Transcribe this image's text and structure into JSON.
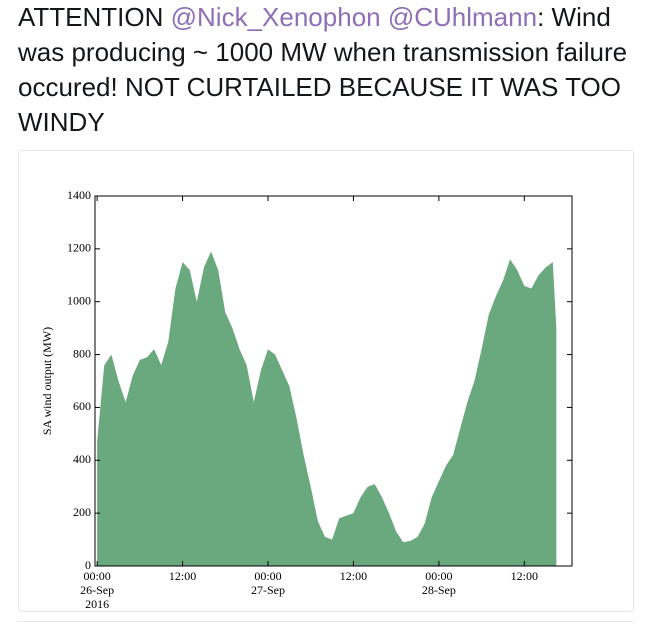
{
  "tweet": {
    "prefix": "ATTENTION",
    "mention_1": "@Nick_Xenophon",
    "mention_2": "@CUhlmann",
    "separator": ":",
    "body": "Wind was producing ~ 1000 MW when transmission failure occured! NOT CURTAILED BECAUSE IT WAS TOO WINDY"
  },
  "chart_data": {
    "type": "area",
    "ylabel": "SA wind output (MW)",
    "color": "#6aa97e",
    "x": [
      0,
      1,
      2,
      3,
      4,
      5,
      6,
      7,
      8,
      9,
      10,
      11,
      12,
      13,
      14,
      15,
      16,
      17,
      18,
      19,
      20,
      21,
      22,
      23,
      24,
      25,
      26,
      27,
      28,
      29,
      30,
      31,
      32,
      33,
      34,
      35,
      36,
      37,
      38,
      39,
      40,
      41,
      42,
      43,
      44,
      45,
      46,
      47,
      48,
      49,
      50,
      51,
      52,
      53,
      54,
      55,
      56,
      57,
      58,
      59,
      60,
      61,
      62,
      63,
      64,
      64.5
    ],
    "values": [
      470,
      760,
      800,
      700,
      620,
      720,
      780,
      790,
      820,
      760,
      850,
      1050,
      1150,
      1120,
      1000,
      1130,
      1190,
      1120,
      960,
      900,
      820,
      760,
      620,
      740,
      820,
      800,
      740,
      680,
      560,
      420,
      300,
      170,
      110,
      100,
      180,
      190,
      200,
      260,
      300,
      310,
      260,
      200,
      130,
      90,
      95,
      110,
      160,
      260,
      320,
      380,
      420,
      520,
      620,
      700,
      820,
      950,
      1020,
      1080,
      1160,
      1120,
      1060,
      1050,
      1100,
      1130,
      1150,
      900
    ],
    "xlim": [
      -0.3,
      66.7
    ],
    "xticks": [
      {
        "value": 0,
        "label": "00:00\n26-Sep\n2016"
      },
      {
        "value": 12,
        "label": "12:00"
      },
      {
        "value": 24,
        "label": "00:00\n27-Sep"
      },
      {
        "value": 36,
        "label": "12:00"
      },
      {
        "value": 48,
        "label": "00:00\n28-Sep"
      },
      {
        "value": 60,
        "label": "12:00"
      }
    ],
    "ylim": [
      0,
      1400
    ],
    "yticks": [
      0,
      200,
      400,
      600,
      800,
      1000,
      1200,
      1400
    ]
  }
}
